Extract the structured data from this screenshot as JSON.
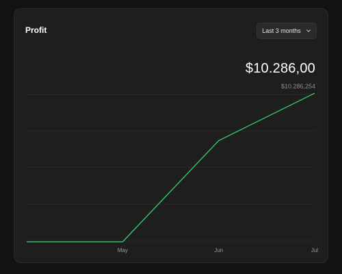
{
  "card": {
    "title": "Profit",
    "range_select": {
      "value": "Last 3 months"
    },
    "value_main": "$10.286,00",
    "value_sub": "$10.286,254"
  },
  "colors": {
    "background": "#121212",
    "card": "#1e1e1e",
    "line": "#34d46c",
    "grid": "#2b2b2b"
  },
  "chart_data": {
    "type": "line",
    "x": [
      "",
      "May",
      "Jun",
      "Jul"
    ],
    "series": [
      {
        "values": [
          0,
          0,
          2350,
          3450
        ]
      }
    ],
    "ylim": [
      0,
      3500
    ],
    "grid": true
  }
}
